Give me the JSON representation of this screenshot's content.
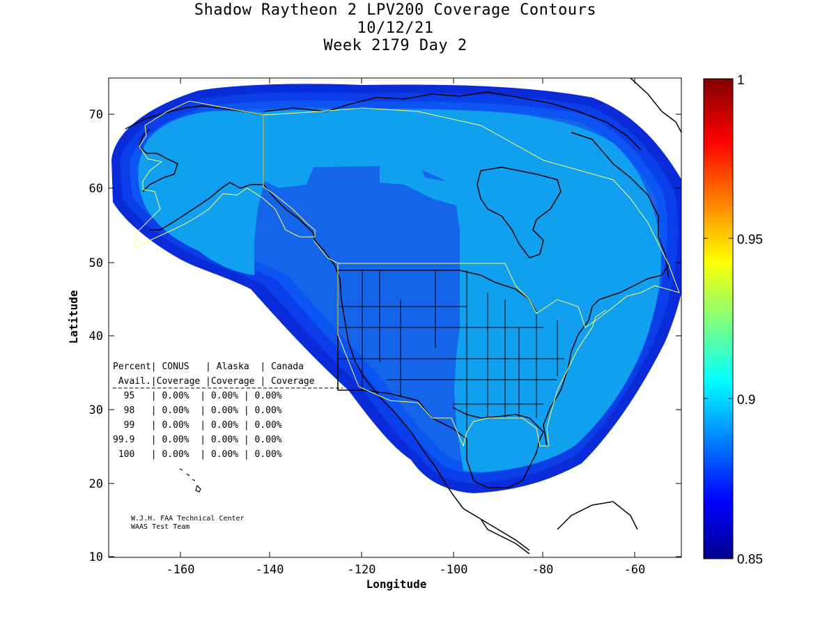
{
  "title": {
    "line1": "Shadow Raytheon 2 LPV200 Coverage Contours",
    "line2": "10/12/21",
    "line3": "Week 2179 Day 2"
  },
  "axes": {
    "xlabel": "Longitude",
    "ylabel": "Latitude",
    "xticks": [
      "-160",
      "-140",
      "-120",
      "-100",
      "-80",
      "-60"
    ],
    "yticks": [
      "10",
      "20",
      "30",
      "40",
      "50",
      "60",
      "70"
    ]
  },
  "colorbar": {
    "ticks": [
      "0.85",
      "0.9",
      "0.95",
      "1"
    ]
  },
  "table": {
    "header1": "Percent| CONUS   | Alaska  | Canada",
    "header2": " Avail.|Coverage |Coverage | Coverage",
    "rows": [
      "  95   | 0.00%  | 0.00% | 0.00%",
      "  98   | 0.00%  | 0.00% | 0.00%",
      "  99   | 0.00%  | 0.00% | 0.00%",
      "99.9   | 0.00%  | 0.00% | 0.00%",
      " 100   | 0.00%  | 0.00% | 0.00%"
    ]
  },
  "credit": {
    "line1": "W.J.H. FAA Technical Center",
    "line2": "WAAS Test Team"
  },
  "colors": {
    "outer": "#0a2bd8",
    "ring1": "#0a3ee8",
    "ring2": "#0d55f2",
    "mid": "#1565ea",
    "inner": "#119fef",
    "boundary": "#ffff66"
  }
}
